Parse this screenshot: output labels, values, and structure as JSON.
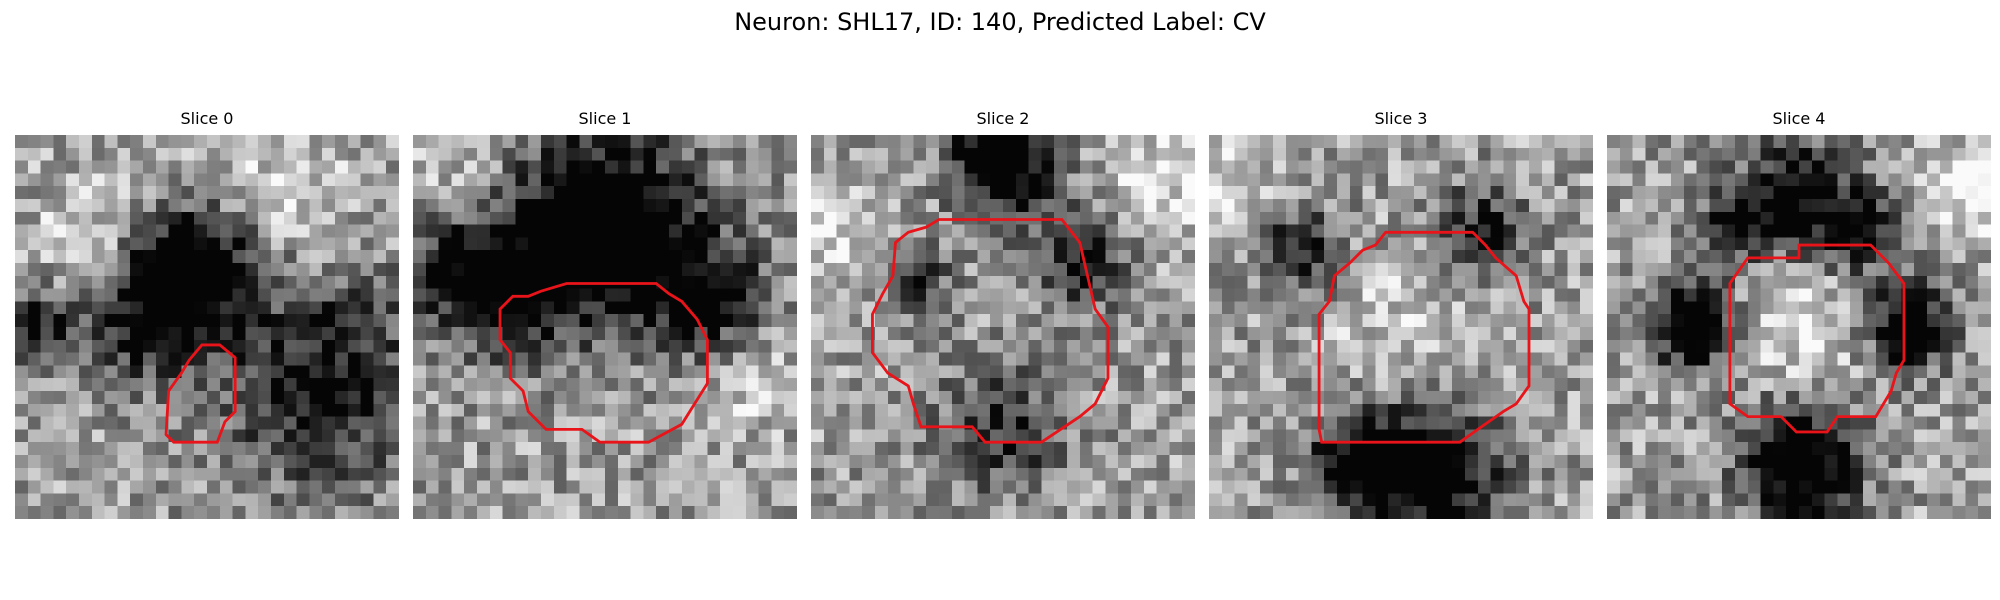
{
  "figure": {
    "title": "Neuron: SHL17, ID: 140, Predicted Label: CV"
  },
  "colors": {
    "contour": "#e8141a",
    "background": "#ffffff"
  },
  "panels": [
    {
      "title": "Slice 0",
      "seed": 11,
      "darkness": [
        [
          7.0,
          5.0,
          2.4,
          0.85
        ],
        [
          4.8,
          6.8,
          2.8,
          0.6
        ],
        [
          0.8,
          7.5,
          1.5,
          0.5
        ],
        [
          12,
          9.5,
          4,
          0.6
        ]
      ],
      "light": [
        [
          3.5,
          4.5,
          2.5,
          0.6
        ],
        [
          10,
          2.5,
          3.5,
          0.35
        ]
      ]
    },
    {
      "title": "Slice 1",
      "seed": 23,
      "darkness": [
        [
          7.5,
          3.5,
          3.6,
          0.95
        ],
        [
          3.5,
          6.0,
          2.8,
          0.5
        ],
        [
          11.5,
          6.5,
          2.3,
          0.6
        ],
        [
          1.5,
          5,
          2,
          0.4
        ]
      ],
      "light": [
        [
          1.5,
          1.5,
          2.5,
          0.3
        ],
        [
          13,
          9.5,
          2,
          0.4
        ]
      ]
    },
    {
      "title": "Slice 2",
      "seed": 37,
      "darkness": [
        [
          7.5,
          1.0,
          2.0,
          0.95
        ],
        [
          4.0,
          5.5,
          1.4,
          0.5
        ],
        [
          10.5,
          5.0,
          1.8,
          0.55
        ],
        [
          7.5,
          11.5,
          2.5,
          0.45
        ]
      ],
      "light": [
        [
          1.2,
          3.5,
          2,
          0.4
        ],
        [
          13.5,
          2,
          2,
          0.4
        ]
      ]
    },
    {
      "title": "Slice 3",
      "seed": 51,
      "darkness": [
        [
          6.0,
          12.8,
          2.0,
          0.8
        ],
        [
          9,
          13.2,
          2.4,
          0.8
        ],
        [
          3.5,
          4.5,
          1.6,
          0.55
        ],
        [
          10.5,
          3.8,
          1.8,
          0.5
        ]
      ],
      "light": [
        [
          7.5,
          7.5,
          3,
          0.25
        ],
        [
          1,
          2,
          2,
          0.35
        ]
      ]
    },
    {
      "title": "Slice 4",
      "seed": 67,
      "darkness": [
        [
          3.4,
          7.5,
          1.6,
          0.9
        ],
        [
          11.8,
          7.5,
          1.6,
          0.85
        ],
        [
          7.5,
          12.8,
          2.2,
          0.95
        ],
        [
          7.5,
          2.4,
          2.2,
          0.7
        ],
        [
          5,
          3.5,
          1.5,
          0.5
        ],
        [
          10,
          3.8,
          1.5,
          0.6
        ]
      ],
      "light": [
        [
          7.5,
          7.5,
          2.6,
          0.45
        ],
        [
          14,
          2,
          2,
          0.5
        ]
      ]
    }
  ]
}
